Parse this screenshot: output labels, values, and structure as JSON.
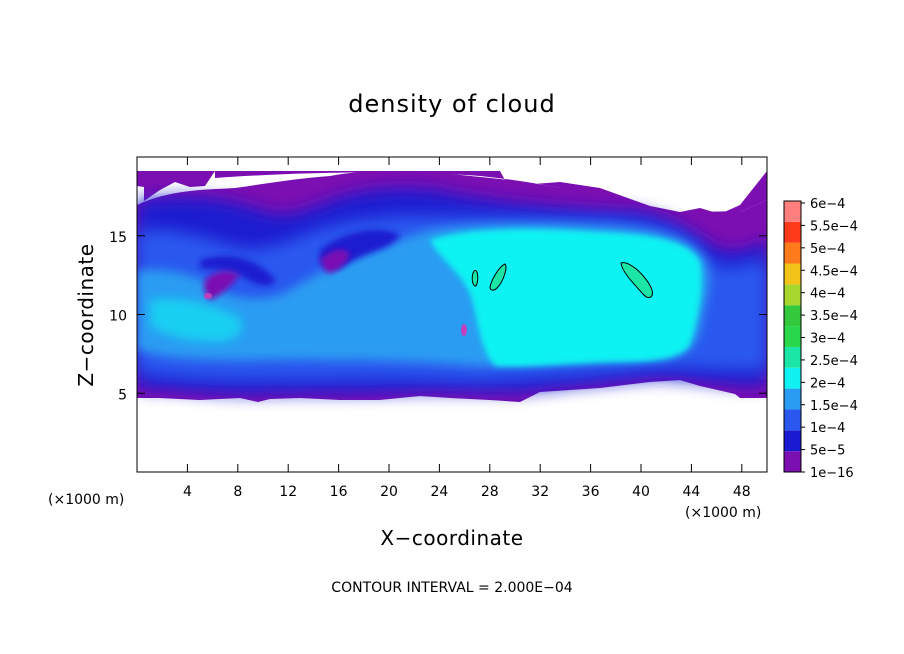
{
  "chart_data": {
    "type": "heatmap",
    "title": "density of cloud",
    "xlabel": "X−coordinate",
    "ylabel": "Z−coordinate",
    "x_unit_label": "(×1000 m)",
    "y_unit_label": "(×1000 m)",
    "xlim": [
      0,
      50
    ],
    "ylim": [
      0,
      20
    ],
    "x_ticks": [
      4,
      8,
      12,
      16,
      20,
      24,
      28,
      32,
      36,
      40,
      44,
      48
    ],
    "y_ticks": [
      5,
      10,
      15
    ],
    "contour_interval_text": "CONTOUR INTERVAL = 2.000E−04",
    "colorbar": {
      "levels": [
        "1e−16",
        "5e−5",
        "1e−4",
        "1.5e−4",
        "2e−4",
        "2.5e−4",
        "3e−4",
        "3.5e−4",
        "4e−4",
        "4.5e−4",
        "5e−4",
        "5.5e−4",
        "6e−4"
      ],
      "colors": [
        "#7b0fb2",
        "#1a1ad0",
        "#2a58ef",
        "#2a9cf2",
        "#10f2f2",
        "#1be6a6",
        "#28d84a",
        "#34c93c",
        "#a7d62c",
        "#f2c41a",
        "#ff7a1a",
        "#ff3a1a",
        "#ff7f7f"
      ]
    },
    "field": {
      "x_range": [
        0,
        50
      ],
      "z_range": [
        4.5,
        19.2
      ],
      "notes": "Cloud density field; cloud layer between z≈5 and z≈19 km with highest values (~2e-4) in the core at x≈27–44, z≈7–17; small closed contours at 2e-4 near x≈27, x≈29 and x≈39–41, z≈12–13."
    }
  }
}
